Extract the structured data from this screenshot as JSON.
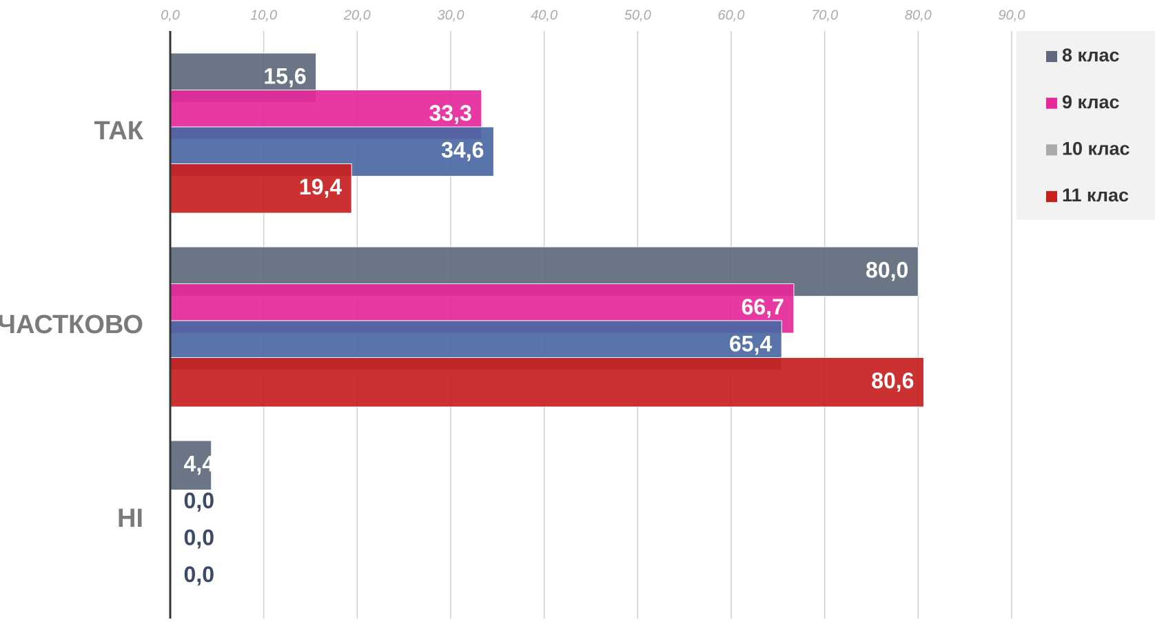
{
  "chart_data": {
    "type": "bar",
    "orientation": "horizontal",
    "categories": [
      "ТАК",
      "ЧАСТКОВО",
      "НІ"
    ],
    "series": [
      {
        "name": "8 клас",
        "color": "#5d6a7c",
        "values": [
          15.6,
          80.0,
          4.4
        ],
        "value_labels": [
          "15,6",
          "80,0",
          "4,4"
        ]
      },
      {
        "name": "9 клас",
        "color": "#e5289a",
        "values": [
          33.3,
          66.7,
          0.0
        ],
        "value_labels": [
          "33,3",
          "66,7",
          "0,0"
        ]
      },
      {
        "name": "10 клас",
        "color": "#4a68a3",
        "legend_color": "#aaaaaa",
        "values": [
          34.6,
          65.4,
          0.0
        ],
        "value_labels": [
          "34,6",
          "65,4",
          "0,0"
        ]
      },
      {
        "name": "11 клас",
        "color": "#c8201f",
        "values": [
          19.4,
          80.6,
          0.0
        ],
        "value_labels": [
          "19,4",
          "80,6",
          "0,0"
        ]
      }
    ],
    "xlim": [
      0,
      90
    ],
    "xticks": [
      {
        "value": 0,
        "label": "0,0"
      },
      {
        "value": 10,
        "label": "10,0"
      },
      {
        "value": 20,
        "label": "20,0"
      },
      {
        "value": 30,
        "label": "30,0"
      },
      {
        "value": 40,
        "label": "40,0"
      },
      {
        "value": 50,
        "label": "50,0"
      },
      {
        "value": 60,
        "label": "60,0"
      },
      {
        "value": 70,
        "label": "70,0"
      },
      {
        "value": 80,
        "label": "80,0"
      },
      {
        "value": 90,
        "label": "90,0"
      }
    ],
    "grid": true,
    "legend": "top-right"
  }
}
